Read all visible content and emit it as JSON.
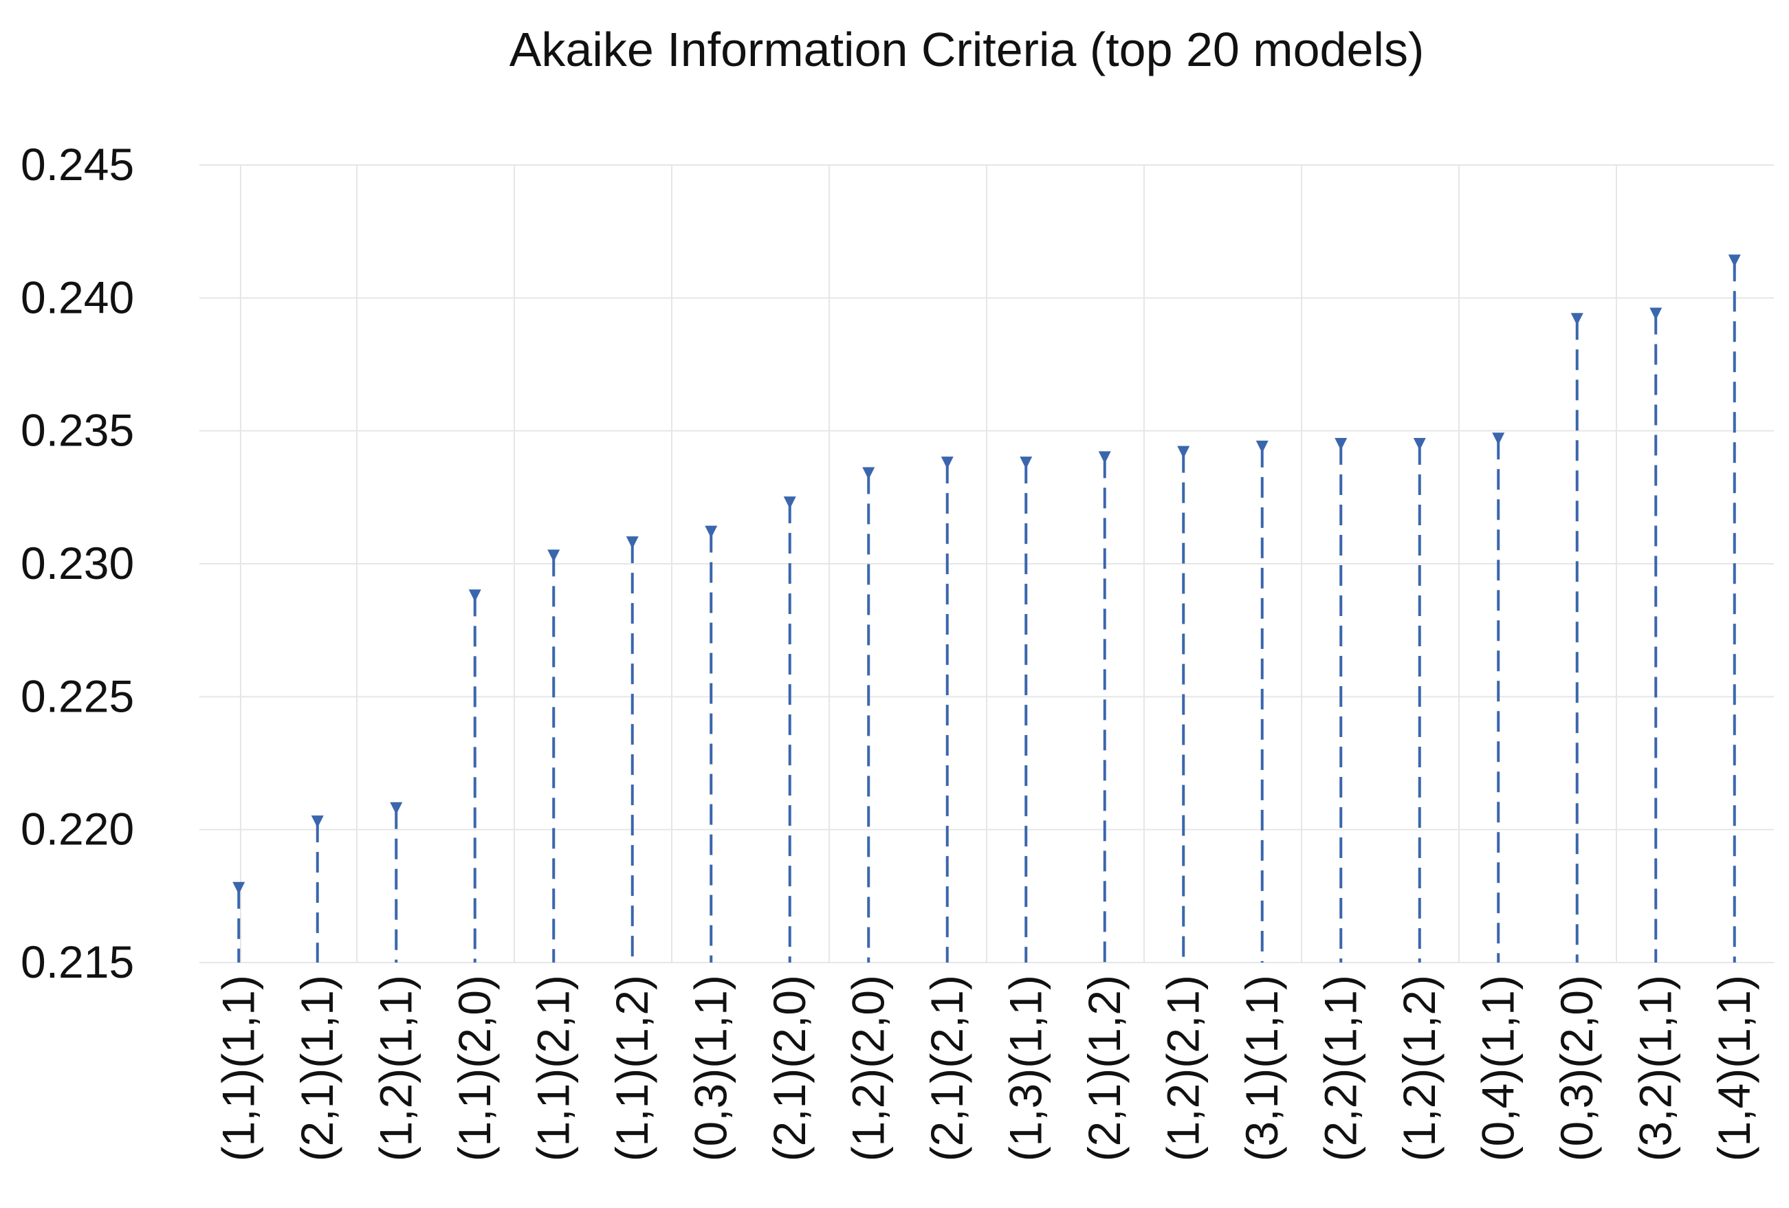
{
  "chart_data": {
    "type": "line",
    "subtype": "drop-lines with triangle markers",
    "title": "Akaike Information Criteria (top 20 models)",
    "xlabel": "",
    "ylabel": "",
    "ylim": [
      0.215,
      0.245
    ],
    "yticks": [
      "0.215",
      "0.220",
      "0.225",
      "0.230",
      "0.235",
      "0.240",
      "0.245"
    ],
    "ytick_values": [
      0.215,
      0.22,
      0.225,
      0.23,
      0.235,
      0.24,
      0.245
    ],
    "grid": true,
    "legend": "none",
    "color": "#3a66ad",
    "categories": [
      "(1,1)(1,1)",
      "(2,1)(1,1)",
      "(1,2)(1,1)",
      "(1,1)(2,0)",
      "(1,1)(2,1)",
      "(1,1)(1,2)",
      "(0,3)(1,1)",
      "(2,1)(2,0)",
      "(1,2)(2,0)",
      "(2,1)(2,1)",
      "(1,3)(1,1)",
      "(2,1)(1,2)",
      "(1,2)(2,1)",
      "(3,1)(1,1)",
      "(2,2)(1,1)",
      "(1,2)(1,2)",
      "(0,4)(1,1)",
      "(0,3)(2,0)",
      "(3,2)(1,1)",
      "(1,4)(1,1)"
    ],
    "values": [
      0.2178,
      0.2203,
      0.2208,
      0.2288,
      0.2303,
      0.2308,
      0.2312,
      0.2323,
      0.2334,
      0.2338,
      0.2338,
      0.234,
      0.2342,
      0.2344,
      0.2345,
      0.2345,
      0.2347,
      0.2392,
      0.2394,
      0.2414
    ]
  }
}
